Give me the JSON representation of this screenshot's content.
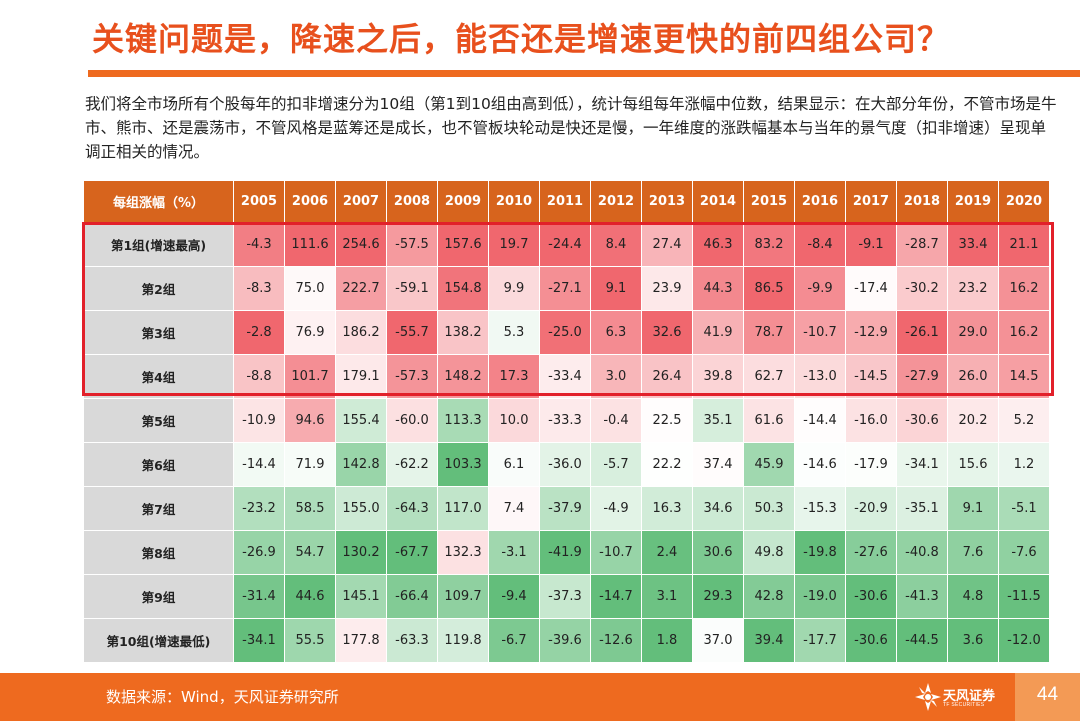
{
  "title": "关键问题是，降速之后，能否还是增速更快的前四组公司？",
  "description": "我们将全市场所有个股每年的扣非增速分为10组（第1到10组由高到低），统计每组每年涨幅中位数，结果显示：在大部分年份，不管市场是牛市、熊市、还是震荡市，不管风格是蓝筹还是成长，也不管板块轮动是快还是慢，一年维度的涨跌幅基本与当年的景气度（扣非增速）呈现单调正相关的情况。",
  "table": {
    "corner": "每组涨幅（%）",
    "years": [
      "2005",
      "2006",
      "2007",
      "2008",
      "2009",
      "2010",
      "2011",
      "2012",
      "2013",
      "2014",
      "2015",
      "2016",
      "2017",
      "2018",
      "2019",
      "2020"
    ],
    "rows": [
      {
        "label": "第1组(增速最高)",
        "values": [
          "-4.3",
          "111.6",
          "254.6",
          "-57.5",
          "157.6",
          "19.7",
          "-24.4",
          "8.4",
          "27.4",
          "46.3",
          "83.2",
          "-8.4",
          "-9.1",
          "-28.7",
          "33.4",
          "21.1"
        ]
      },
      {
        "label": "第2组",
        "values": [
          "-8.3",
          "75.0",
          "222.7",
          "-59.1",
          "154.8",
          "9.9",
          "-27.1",
          "9.1",
          "23.9",
          "44.3",
          "86.5",
          "-9.9",
          "-17.4",
          "-30.2",
          "23.2",
          "16.2"
        ]
      },
      {
        "label": "第3组",
        "values": [
          "-2.8",
          "76.9",
          "186.2",
          "-55.7",
          "138.2",
          "5.3",
          "-25.0",
          "6.3",
          "32.6",
          "41.9",
          "78.7",
          "-10.7",
          "-12.9",
          "-26.1",
          "29.0",
          "16.2"
        ]
      },
      {
        "label": "第4组",
        "values": [
          "-8.8",
          "101.7",
          "179.1",
          "-57.3",
          "148.2",
          "17.3",
          "-33.4",
          "3.0",
          "26.4",
          "39.8",
          "62.7",
          "-13.0",
          "-14.5",
          "-27.9",
          "26.0",
          "14.5"
        ]
      },
      {
        "label": "第5组",
        "values": [
          "-10.9",
          "94.6",
          "155.4",
          "-60.0",
          "113.3",
          "10.0",
          "-33.3",
          "-0.4",
          "22.5",
          "35.1",
          "61.6",
          "-14.4",
          "-16.0",
          "-30.6",
          "20.2",
          "5.2"
        ]
      },
      {
        "label": "第6组",
        "values": [
          "-14.4",
          "71.9",
          "142.8",
          "-62.2",
          "103.3",
          "6.1",
          "-36.0",
          "-5.7",
          "22.2",
          "37.4",
          "45.9",
          "-14.6",
          "-17.9",
          "-34.1",
          "15.6",
          "1.2"
        ]
      },
      {
        "label": "第7组",
        "values": [
          "-23.2",
          "58.5",
          "155.0",
          "-64.3",
          "117.0",
          "7.4",
          "-37.9",
          "-4.9",
          "16.3",
          "34.6",
          "50.3",
          "-15.3",
          "-20.9",
          "-35.1",
          "9.1",
          "-5.1"
        ]
      },
      {
        "label": "第8组",
        "values": [
          "-26.9",
          "54.7",
          "130.2",
          "-67.7",
          "132.3",
          "-3.1",
          "-41.9",
          "-10.7",
          "2.4",
          "30.6",
          "49.8",
          "-19.8",
          "-27.6",
          "-40.8",
          "7.6",
          "-7.6"
        ]
      },
      {
        "label": "第9组",
        "values": [
          "-31.4",
          "44.6",
          "145.1",
          "-66.4",
          "109.7",
          "-9.4",
          "-37.3",
          "-14.7",
          "3.1",
          "29.3",
          "42.8",
          "-19.0",
          "-30.6",
          "-41.3",
          "4.8",
          "-11.5"
        ]
      },
      {
        "label": "第10组(增速最低)",
        "values": [
          "-34.1",
          "55.5",
          "177.8",
          "-63.3",
          "119.8",
          "-6.7",
          "-39.6",
          "-12.6",
          "1.8",
          "37.0",
          "39.4",
          "-17.7",
          "-30.6",
          "-44.5",
          "3.6",
          "-12.0"
        ]
      }
    ]
  },
  "footer": {
    "source": "数据来源：Wind，天风证券研究所",
    "logo_text": "天风证券",
    "logo_sub": "TF SECURITIES",
    "page_number": "44"
  },
  "colors": {
    "accent": "#ee6a1f",
    "title": "#e8501d",
    "header_bg": "#d7641d",
    "highlight_border": "#e2202a",
    "row_label_bg": "#d9d9d9",
    "heat_high": "#f0676e",
    "heat_mid": "#ffffff",
    "heat_low": "#63be7b"
  }
}
